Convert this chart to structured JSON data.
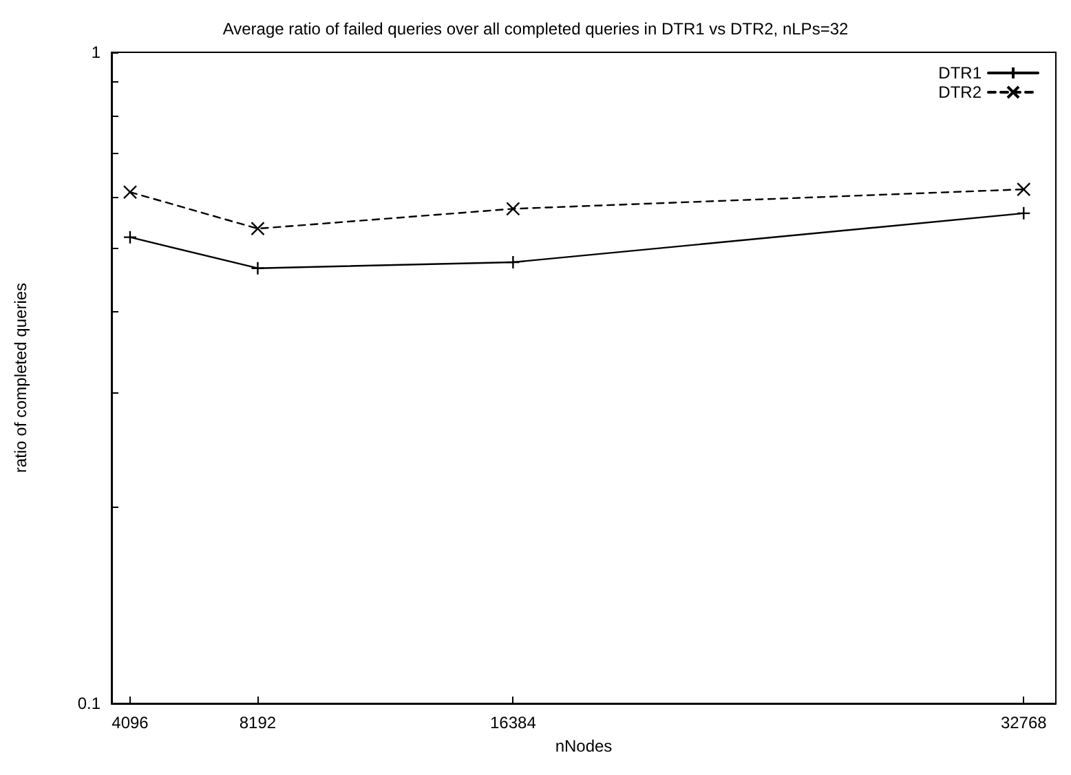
{
  "chart_data": {
    "type": "line",
    "title": "Average ratio of failed queries over all completed queries in DTR1 vs DTR2, nLPs=32",
    "xlabel": "nNodes",
    "ylabel": "ratio of completed queries",
    "x": [
      4096,
      8192,
      16384,
      32768
    ],
    "series": [
      {
        "name": "DTR1",
        "color": "#000000",
        "marker": "plus",
        "line_style": "solid",
        "values": [
          0.52,
          0.466,
          0.476,
          0.566
        ]
      },
      {
        "name": "DTR2",
        "color": "#000000",
        "marker": "cross",
        "line_style": "dashed",
        "values": [
          0.61,
          0.536,
          0.575,
          0.616
        ]
      }
    ],
    "xlim": [
      3500,
      33800
    ],
    "xticks": [
      4096,
      8192,
      16384,
      32768
    ],
    "ylim": [
      0.1,
      1
    ],
    "yticks": [
      0.1,
      {
        "value": 0.2,
        "label": null
      },
      {
        "value": 0.3,
        "label": null
      },
      {
        "value": 0.4,
        "label": null
      },
      {
        "value": 0.5,
        "label": null
      },
      {
        "value": 0.6,
        "label": null
      },
      {
        "value": 0.7,
        "label": null
      },
      {
        "value": 0.8,
        "label": null
      },
      {
        "value": 0.9,
        "label": null
      },
      1
    ],
    "log": "y",
    "grid": false,
    "legend": "top right"
  }
}
